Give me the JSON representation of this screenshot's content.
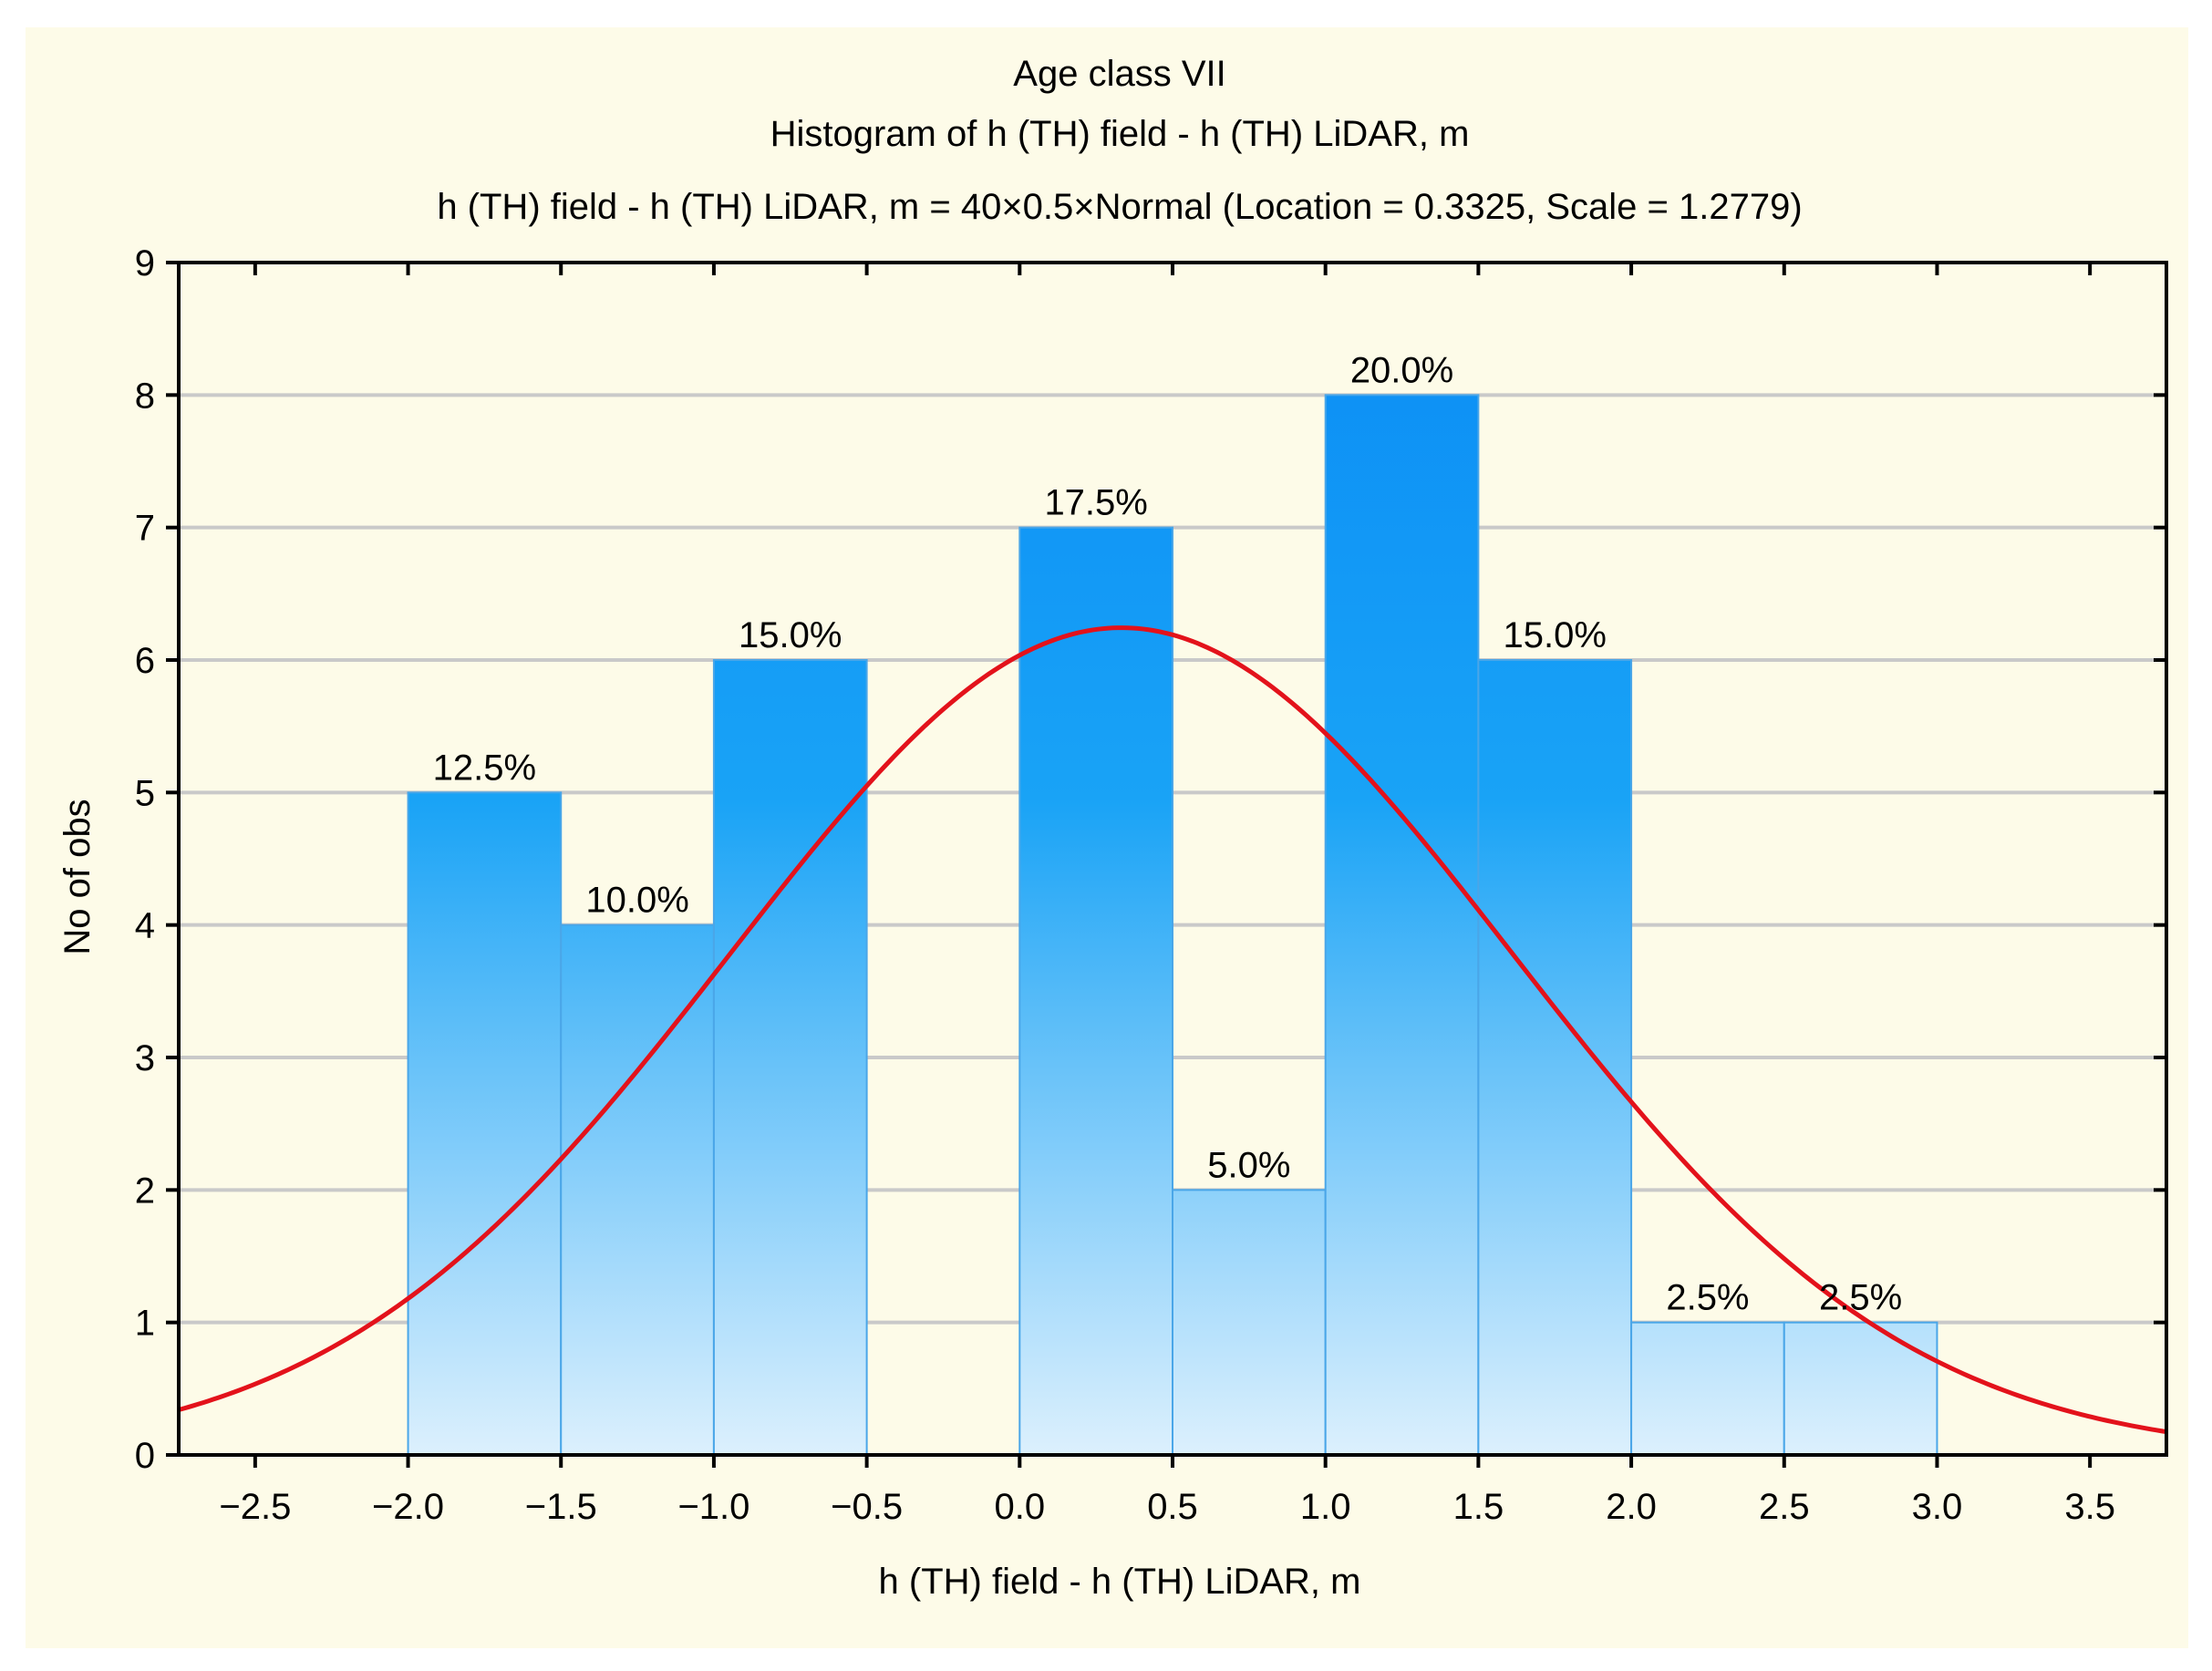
{
  "chart_data": {
    "type": "bar",
    "title": "Age class VII",
    "subtitle": "Histogram of h (TH) field - h (TH) LiDAR, m",
    "fit_label": "h (TH) field - h (TH) LiDAR, m = 40×0.5×Normal (Location = 0.3325, Scale = 1.2779)",
    "xlabel": "h (TH) field - h (TH) LiDAR, m",
    "ylabel": "No of obs",
    "xlim": [
      -2.75,
      3.75
    ],
    "ylim": [
      0,
      9
    ],
    "xticks": [
      -2.5,
      -2.0,
      -1.5,
      -1.0,
      -0.5,
      0.0,
      0.5,
      1.0,
      1.5,
      2.0,
      2.5,
      3.0,
      3.5
    ],
    "xtick_labels": [
      "−2.5",
      "−2.0",
      "−1.5",
      "−1.0",
      "−0.5",
      "0.0",
      "0.5",
      "1.0",
      "1.5",
      "2.0",
      "2.5",
      "3.0",
      "3.5"
    ],
    "yticks": [
      0,
      1,
      2,
      3,
      4,
      5,
      6,
      7,
      8,
      9
    ],
    "ytick_labels": [
      "0",
      "1",
      "2",
      "3",
      "4",
      "5",
      "6",
      "7",
      "8",
      "9"
    ],
    "grid": true,
    "bins": [
      {
        "from": -2.0,
        "to": -1.5,
        "count": 5,
        "label": "12.5%"
      },
      {
        "from": -1.5,
        "to": -1.0,
        "count": 4,
        "label": "10.0%"
      },
      {
        "from": -1.0,
        "to": -0.5,
        "count": 6,
        "label": "15.0%"
      },
      {
        "from": -0.5,
        "to": 0.0,
        "count": 0,
        "label": ""
      },
      {
        "from": 0.0,
        "to": 0.5,
        "count": 7,
        "label": "17.5%"
      },
      {
        "from": 0.5,
        "to": 1.0,
        "count": 2,
        "label": "5.0%"
      },
      {
        "from": 1.0,
        "to": 1.5,
        "count": 8,
        "label": "20.0%"
      },
      {
        "from": 1.5,
        "to": 2.0,
        "count": 6,
        "label": "15.0%"
      },
      {
        "from": 2.0,
        "to": 2.5,
        "count": 1,
        "label": "2.5%"
      },
      {
        "from": 2.5,
        "to": 3.0,
        "count": 1,
        "label": "2.5%"
      }
    ],
    "fit": {
      "type": "normal",
      "n": 40,
      "bin_width": 0.5,
      "location": 0.3325,
      "scale": 1.2779
    },
    "colors": {
      "background": "#fdfbe8",
      "bar_top": "#0a8cf5",
      "bar_bottom": "#dcf0fd",
      "bar_edge": "#4aa6e8",
      "curve": "#e3121b",
      "grid": "#c9c9c9",
      "axis": "#000000"
    }
  }
}
